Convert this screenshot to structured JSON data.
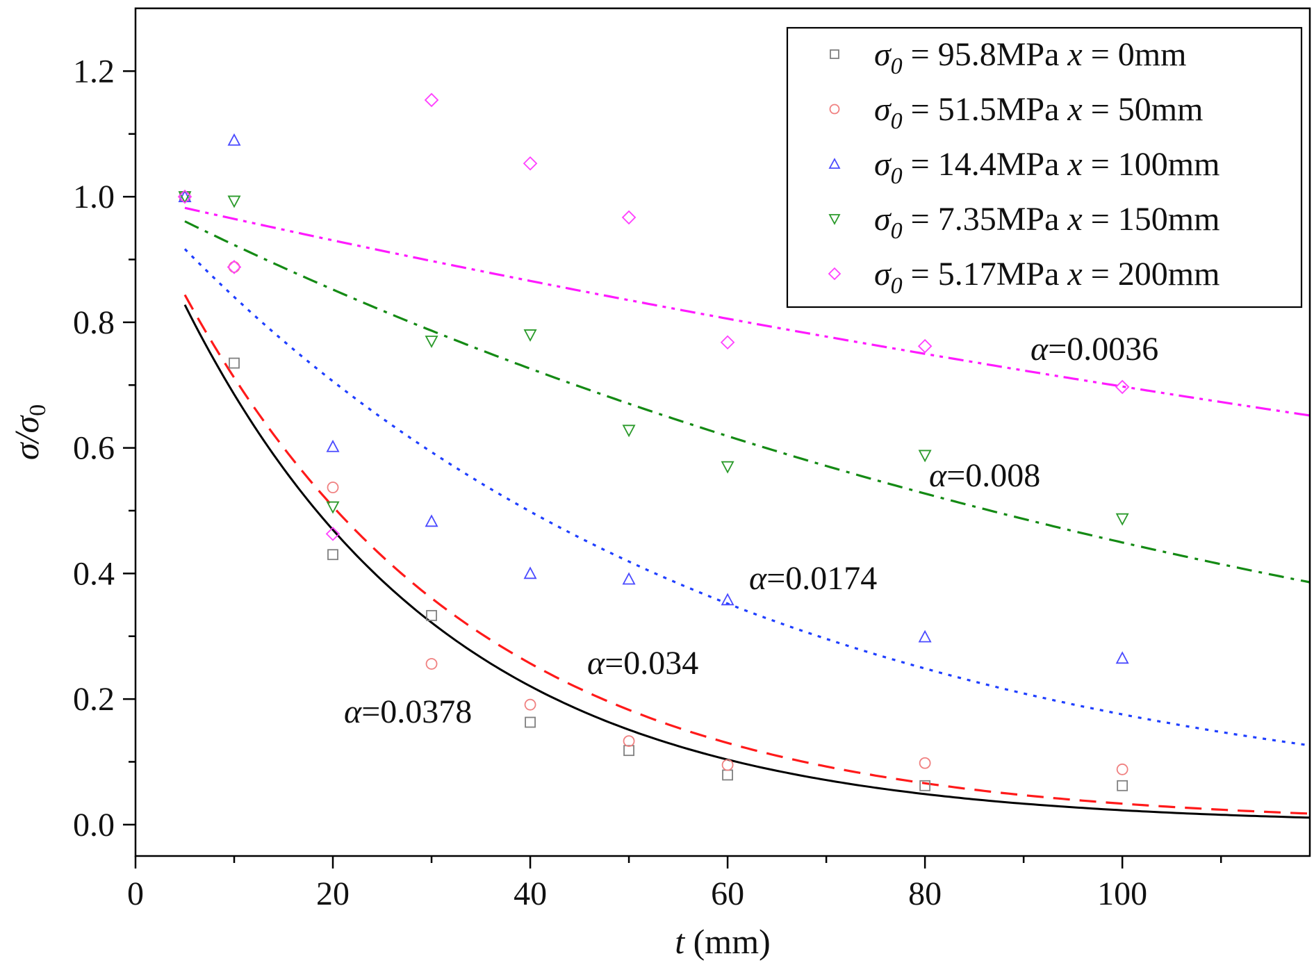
{
  "chart_data": {
    "type": "scatter",
    "xlabel": "t (mm)",
    "xlabel_var": "t",
    "xlabel_unit": " (mm)",
    "ylabel": "σ/σ0",
    "xlim": [
      0,
      119
    ],
    "ylim": [
      -0.05,
      1.3
    ],
    "x_ticks": [
      0,
      20,
      40,
      60,
      80,
      100
    ],
    "x_minor_ticks": [
      10,
      30,
      50,
      70,
      90,
      110
    ],
    "y_ticks": [
      0.0,
      0.2,
      0.4,
      0.6,
      0.8,
      1.0,
      1.2
    ],
    "y_tick_labels": [
      "0.0",
      "0.2",
      "0.4",
      "0.6",
      "0.8",
      "1.0",
      "1.2"
    ],
    "y_minor_ticks": [
      0.1,
      0.3,
      0.5,
      0.7,
      0.9,
      1.1
    ],
    "x_tick_labels": [
      "0",
      "20",
      "40",
      "60",
      "80",
      "100"
    ],
    "legend_position": "top-right",
    "grid": false,
    "series": [
      {
        "name": "σ0 = 95.8MPa  x = 0mm",
        "sigma_value": "95.8MPa",
        "x_value": "0mm",
        "marker": "square",
        "color": "#808080",
        "x": [
          5,
          10,
          20,
          30,
          40,
          50,
          60,
          80,
          100
        ],
        "values": [
          1.0,
          0.735,
          0.43,
          0.333,
          0.163,
          0.118,
          0.079,
          0.062,
          0.062
        ]
      },
      {
        "name": "σ0 = 51.5MPa  x = 50mm",
        "sigma_value": "51.5MPa",
        "x_value": "50mm",
        "marker": "circle",
        "color": "#f08080",
        "x": [
          5,
          10,
          20,
          30,
          40,
          50,
          60,
          80,
          100
        ],
        "values": [
          1.0,
          0.888,
          0.537,
          0.256,
          0.191,
          0.133,
          0.095,
          0.098,
          0.088
        ]
      },
      {
        "name": "σ0 = 14.4MPa  x = 100mm",
        "sigma_value": "14.4MPa",
        "x_value": "100mm",
        "marker": "triangle-up",
        "color": "#4a4aff",
        "x": [
          5,
          10,
          20,
          30,
          40,
          50,
          60,
          80,
          100
        ],
        "values": [
          1.0,
          1.09,
          0.602,
          0.483,
          0.4,
          0.391,
          0.358,
          0.299,
          0.265
        ]
      },
      {
        "name": "σ0 = 7.35MPa  x = 150mm",
        "sigma_value": "7.35MPa",
        "x_value": "150mm",
        "marker": "triangle-down",
        "color": "#2a9a2a",
        "x": [
          5,
          10,
          20,
          30,
          40,
          50,
          60,
          80,
          100
        ],
        "values": [
          1.0,
          0.993,
          0.506,
          0.77,
          0.78,
          0.628,
          0.57,
          0.588,
          0.487
        ]
      },
      {
        "name": "σ0 = 5.17MPa  x = 200mm",
        "sigma_value": "5.17MPa",
        "x_value": "200mm",
        "marker": "diamond",
        "color": "#ff40ff",
        "x": [
          5,
          10,
          20,
          30,
          40,
          50,
          60,
          80,
          100
        ],
        "values": [
          1.0,
          0.888,
          0.463,
          1.154,
          1.053,
          0.967,
          0.768,
          0.762,
          0.697
        ]
      }
    ],
    "fit_curves": [
      {
        "alpha": 0.0378,
        "label": "α=0.0378",
        "label_value": "=0.0378",
        "color": "#000000",
        "dash": "",
        "x_range": [
          5,
          119
        ]
      },
      {
        "alpha": 0.034,
        "label": "α=0.034",
        "label_value": "=0.034",
        "color": "#ff1a1a",
        "dash": "24,14",
        "x_range": [
          5,
          119
        ]
      },
      {
        "alpha": 0.0174,
        "label": "α=0.0174",
        "label_value": "=0.0174",
        "color": "#1f3fff",
        "dash": "5,9",
        "x_range": [
          5,
          119
        ]
      },
      {
        "alpha": 0.008,
        "label": "α=0.008",
        "label_value": "=0.008",
        "color": "#148a14",
        "dash": "22,10,5,10",
        "x_range": [
          5,
          119
        ]
      },
      {
        "alpha": 0.0036,
        "label": "α=0.0036",
        "label_value": "=0.0036",
        "color": "#ff1aff",
        "dash": "22,8,5,8,5,8",
        "x_range": [
          5,
          119
        ]
      }
    ]
  }
}
